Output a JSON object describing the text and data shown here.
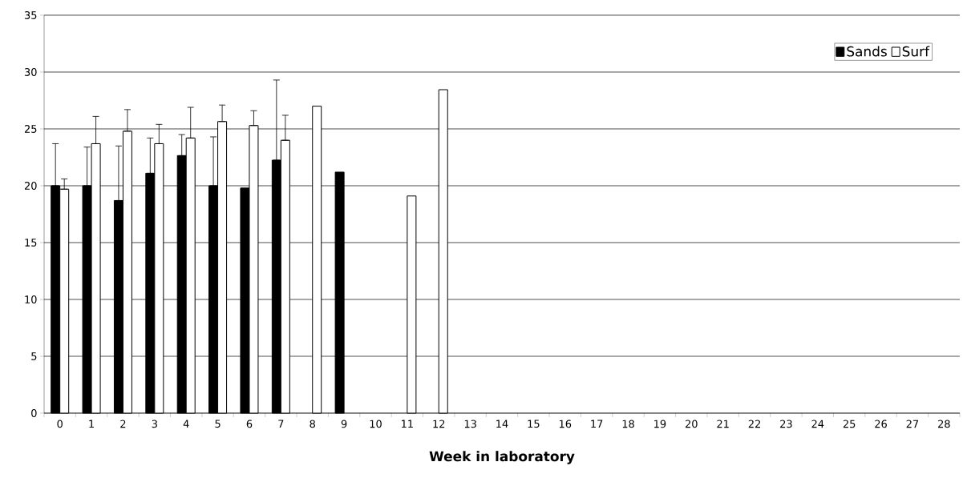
{
  "chart_data": {
    "type": "bar",
    "xlabel": "Week in laboratory",
    "categories": [
      "0",
      "1",
      "2",
      "3",
      "4",
      "5",
      "6",
      "7",
      "8",
      "9",
      "10",
      "11",
      "12",
      "13",
      "14",
      "15",
      "16",
      "17",
      "18",
      "19",
      "20",
      "21",
      "22",
      "23",
      "24",
      "25",
      "26",
      "27",
      "28"
    ],
    "series": [
      {
        "name": "Sands",
        "color": "#000000",
        "values": [
          20,
          20,
          18.7,
          21.1,
          22.65,
          20,
          19.8,
          22.25,
          null,
          21.2,
          null,
          null,
          null,
          null,
          null,
          null,
          null,
          null,
          null,
          null,
          null,
          null,
          null,
          null,
          null,
          null,
          null,
          null,
          null
        ],
        "errors": [
          [
            20,
            23.7
          ],
          [
            20,
            23.4
          ],
          [
            18.7,
            23.5
          ],
          [
            21.1,
            24.2
          ],
          [
            22.65,
            24.5
          ],
          [
            20,
            24.3
          ],
          null,
          [
            22.25,
            29.3
          ],
          null,
          null,
          null,
          null,
          null,
          null,
          null,
          null,
          null,
          null,
          null,
          null,
          null,
          null,
          null,
          null,
          null,
          null,
          null,
          null,
          null
        ]
      },
      {
        "name": "Surf",
        "color": "#ffffff",
        "values": [
          19.7,
          23.7,
          24.8,
          23.7,
          24.2,
          25.65,
          25.3,
          24.0,
          27.0,
          null,
          null,
          19.1,
          28.45,
          null,
          null,
          null,
          null,
          null,
          null,
          null,
          null,
          null,
          null,
          null,
          null,
          null,
          null,
          null,
          null
        ],
        "errors": [
          [
            19.7,
            20.6
          ],
          [
            23.7,
            26.1
          ],
          [
            24.8,
            26.7
          ],
          [
            23.7,
            25.4
          ],
          [
            24.2,
            26.9
          ],
          [
            25.65,
            27.1
          ],
          [
            25.3,
            26.6
          ],
          [
            24.0,
            26.2
          ],
          null,
          null,
          null,
          null,
          null,
          null,
          null,
          null,
          null,
          null,
          null,
          null,
          null,
          null,
          null,
          null,
          null,
          null,
          null,
          null,
          null
        ]
      }
    ],
    "ylim": [
      0,
      35
    ],
    "yticks": [
      0,
      5,
      10,
      15,
      20,
      25,
      30,
      35
    ],
    "grid": "y",
    "legend": "top right"
  }
}
